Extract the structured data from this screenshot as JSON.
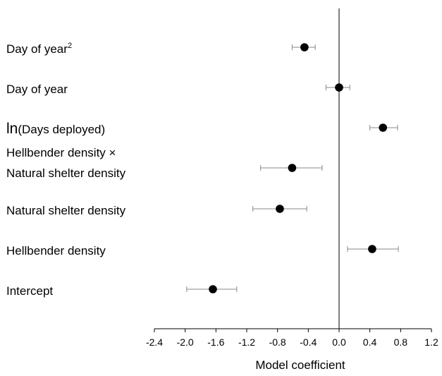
{
  "chart_data": {
    "type": "scatter",
    "title": "",
    "xlabel": "Model coefficient",
    "ylabel": "",
    "xlim": [
      -2.4,
      1.2
    ],
    "xticks": [
      "-2.4",
      "-2.0",
      "-1.6",
      "-1.2",
      "-0.8",
      "-0.4",
      "0.0",
      "0.4",
      "0.8",
      "1.2"
    ],
    "reference_line_x": 0,
    "grid": false,
    "legend": "none",
    "point_color": "#000000",
    "series": [
      {
        "points": [
          {
            "label": "Day of year",
            "superscript": "2",
            "estimate": -0.45,
            "lower": -0.61,
            "upper": -0.31
          },
          {
            "label": "Day of year",
            "superscript": "",
            "estimate": 0.0,
            "lower": -0.17,
            "upper": 0.14
          },
          {
            "label": "ln(Days deployed)",
            "superscript": "",
            "estimate": 0.57,
            "lower": 0.4,
            "upper": 0.76
          },
          {
            "label": "Hellbender density × Natural shelter density",
            "lines": [
              "Hellbender density ×",
              "Natural shelter density"
            ],
            "superscript": "",
            "estimate": -0.61,
            "lower": -1.02,
            "upper": -0.22
          },
          {
            "label": "Natural shelter density",
            "superscript": "",
            "estimate": -0.77,
            "lower": -1.12,
            "upper": -0.42
          },
          {
            "label": "Hellbender density",
            "superscript": "",
            "estimate": 0.43,
            "lower": 0.11,
            "upper": 0.77
          },
          {
            "label": "Intercept",
            "superscript": "",
            "estimate": -1.64,
            "lower": -1.98,
            "upper": -1.33
          }
        ]
      }
    ]
  }
}
